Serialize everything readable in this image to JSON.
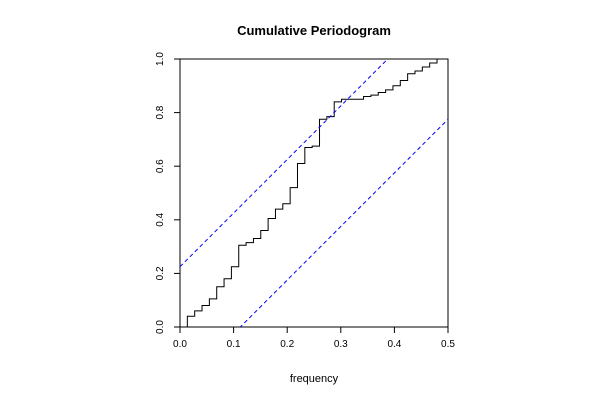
{
  "chart_data": {
    "type": "line",
    "title": "Cumulative Periodogram",
    "xlabel": "frequency",
    "ylabel": "",
    "xlim": [
      0,
      0.5
    ],
    "ylim": [
      0,
      1
    ],
    "x_ticks": [
      "0.0",
      "0.1",
      "0.2",
      "0.3",
      "0.4",
      "0.5"
    ],
    "y_ticks": [
      "0.0",
      "0.2",
      "0.4",
      "0.6",
      "0.8",
      "1.0"
    ],
    "grid": false,
    "legend": "none",
    "series": [
      {
        "kind": "step",
        "color": "#000000",
        "x": [
          0.0,
          0.0137,
          0.0274,
          0.0411,
          0.0548,
          0.0685,
          0.0822,
          0.0959,
          0.1096,
          0.1233,
          0.137,
          0.1507,
          0.1644,
          0.1781,
          0.1918,
          0.2055,
          0.2192,
          0.2329,
          0.2466,
          0.2603,
          0.274,
          0.2877,
          0.3014,
          0.3151,
          0.3288,
          0.3425,
          0.3562,
          0.3699,
          0.3836,
          0.3973,
          0.411,
          0.4247,
          0.4384,
          0.4521,
          0.4658,
          0.4795,
          0.4932
        ],
        "y": [
          0.0,
          0.04,
          0.06,
          0.08,
          0.105,
          0.15,
          0.18,
          0.225,
          0.305,
          0.315,
          0.33,
          0.36,
          0.405,
          0.44,
          0.46,
          0.52,
          0.61,
          0.67,
          0.675,
          0.775,
          0.785,
          0.84,
          0.85,
          0.85,
          0.85,
          0.86,
          0.865,
          0.875,
          0.885,
          0.9,
          0.92,
          0.945,
          0.955,
          0.97,
          0.985,
          1.0,
          1.0
        ]
      },
      {
        "kind": "line",
        "color": "#0000ff",
        "style": "dashed",
        "x": [
          0.0,
          0.5
        ],
        "y": [
          0.225,
          1.225
        ]
      },
      {
        "kind": "line",
        "color": "#0000ff",
        "style": "dashed",
        "x": [
          0.0,
          0.5
        ],
        "y": [
          -0.225,
          0.775
        ]
      }
    ]
  }
}
